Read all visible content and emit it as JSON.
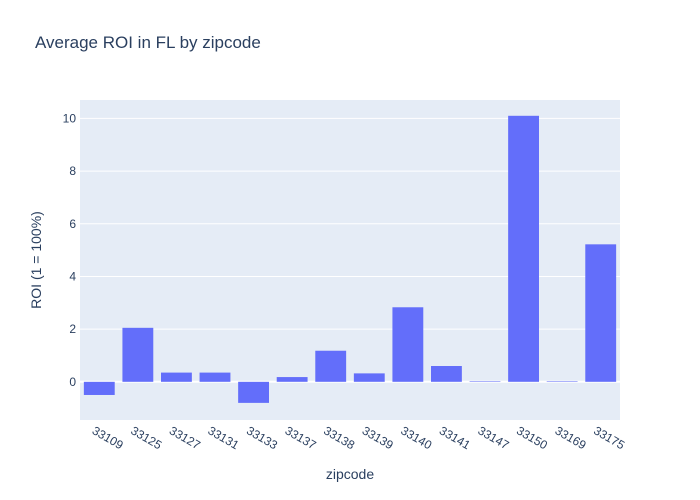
{
  "chart_data": {
    "type": "bar",
    "title": "Average ROI in FL by zipcode",
    "xlabel": "zipcode",
    "ylabel": "ROI (1 = 100%)",
    "categories": [
      "33109",
      "33125",
      "33127",
      "33131",
      "33133",
      "33137",
      "33138",
      "33139",
      "33140",
      "33141",
      "33147",
      "33150",
      "33169",
      "33175"
    ],
    "values": [
      -0.5,
      2.05,
      0.35,
      0.35,
      -0.8,
      0.18,
      1.18,
      0.32,
      2.83,
      0.6,
      0.02,
      10.1,
      0.02,
      5.22
    ],
    "ylim": [
      -1.45,
      10.7
    ],
    "yticks": [
      0,
      2,
      4,
      6,
      8,
      10
    ],
    "grid": true,
    "colors": {
      "bar": "#636efa",
      "plot_bg": "#e5ecf6",
      "grid": "#ffffff",
      "text": "#2a3f5f"
    }
  }
}
